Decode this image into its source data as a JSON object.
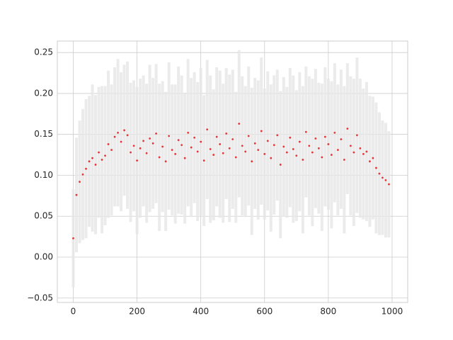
{
  "chart_data": {
    "type": "scatter",
    "x": [
      0,
      10,
      20,
      30,
      40,
      50,
      60,
      70,
      80,
      90,
      100,
      110,
      120,
      130,
      140,
      150,
      160,
      170,
      180,
      190,
      200,
      210,
      220,
      230,
      240,
      250,
      260,
      270,
      280,
      290,
      300,
      310,
      320,
      330,
      340,
      350,
      360,
      370,
      380,
      390,
      400,
      410,
      420,
      430,
      440,
      450,
      460,
      470,
      480,
      490,
      500,
      510,
      520,
      530,
      540,
      550,
      560,
      570,
      580,
      590,
      600,
      610,
      620,
      630,
      640,
      650,
      660,
      670,
      680,
      690,
      700,
      710,
      720,
      730,
      740,
      750,
      760,
      770,
      780,
      790,
      800,
      810,
      820,
      830,
      840,
      850,
      860,
      870,
      880,
      890,
      900,
      910,
      920,
      930,
      940,
      950,
      960,
      970,
      980,
      990
    ],
    "series": [
      {
        "color": "#e8373a",
        "error_color": "#e6e6e6",
        "values": [
          0.023,
          0.076,
          0.092,
          0.101,
          0.108,
          0.117,
          0.121,
          0.113,
          0.128,
          0.119,
          0.124,
          0.138,
          0.131,
          0.147,
          0.152,
          0.141,
          0.155,
          0.149,
          0.128,
          0.136,
          0.118,
          0.133,
          0.142,
          0.127,
          0.145,
          0.139,
          0.151,
          0.122,
          0.135,
          0.117,
          0.148,
          0.131,
          0.126,
          0.143,
          0.137,
          0.121,
          0.152,
          0.134,
          0.146,
          0.129,
          0.141,
          0.118,
          0.156,
          0.132,
          0.125,
          0.147,
          0.138,
          0.127,
          0.151,
          0.133,
          0.144,
          0.122,
          0.163,
          0.136,
          0.129,
          0.148,
          0.117,
          0.139,
          0.131,
          0.154,
          0.126,
          0.142,
          0.121,
          0.137,
          0.149,
          0.113,
          0.135,
          0.128,
          0.146,
          0.132,
          0.124,
          0.141,
          0.119,
          0.153,
          0.136,
          0.128,
          0.145,
          0.133,
          0.122,
          0.147,
          0.138,
          0.125,
          0.152,
          0.131,
          0.144,
          0.119,
          0.157,
          0.136,
          0.128,
          0.149,
          0.133,
          0.126,
          0.129,
          0.117,
          0.121,
          0.109,
          0.102,
          0.097,
          0.094,
          0.089
        ],
        "errors": [
          0.06,
          0.07,
          0.075,
          0.08,
          0.085,
          0.08,
          0.09,
          0.085,
          0.08,
          0.09,
          0.085,
          0.09,
          0.08,
          0.085,
          0.09,
          0.085,
          0.08,
          0.09,
          0.085,
          0.08,
          0.09,
          0.085,
          0.08,
          0.085,
          0.09,
          0.08,
          0.085,
          0.09,
          0.08,
          0.085,
          0.09,
          0.08,
          0.085,
          0.09,
          0.085,
          0.08,
          0.09,
          0.085,
          0.08,
          0.085,
          0.09,
          0.08,
          0.085,
          0.09,
          0.08,
          0.085,
          0.09,
          0.085,
          0.08,
          0.09,
          0.085,
          0.08,
          0.09,
          0.085,
          0.08,
          0.085,
          0.09,
          0.08,
          0.085,
          0.09,
          0.08,
          0.085,
          0.09,
          0.085,
          0.08,
          0.09,
          0.085,
          0.08,
          0.085,
          0.09,
          0.08,
          0.085,
          0.09,
          0.08,
          0.085,
          0.09,
          0.085,
          0.08,
          0.09,
          0.085,
          0.08,
          0.09,
          0.085,
          0.08,
          0.085,
          0.09,
          0.08,
          0.085,
          0.09,
          0.095,
          0.085,
          0.08,
          0.085,
          0.08,
          0.075,
          0.08,
          0.075,
          0.07,
          0.07,
          0.065
        ]
      }
    ],
    "xlim": [
      -49.95,
      1048.95
    ],
    "ylim": [
      -0.0554,
      0.264
    ],
    "xticks": [
      0,
      200,
      400,
      600,
      800,
      1000
    ],
    "yticks": [
      {
        "value": -0.05,
        "label": "−0.05"
      },
      {
        "value": 0,
        "label": "0.00"
      },
      {
        "value": 0.05,
        "label": "0.05"
      },
      {
        "value": 0.1,
        "label": "0.10"
      },
      {
        "value": 0.15,
        "label": "0.15"
      },
      {
        "value": 0.2,
        "label": "0.20"
      },
      {
        "value": 0.25,
        "label": "0.25"
      }
    ],
    "grid": true
  }
}
